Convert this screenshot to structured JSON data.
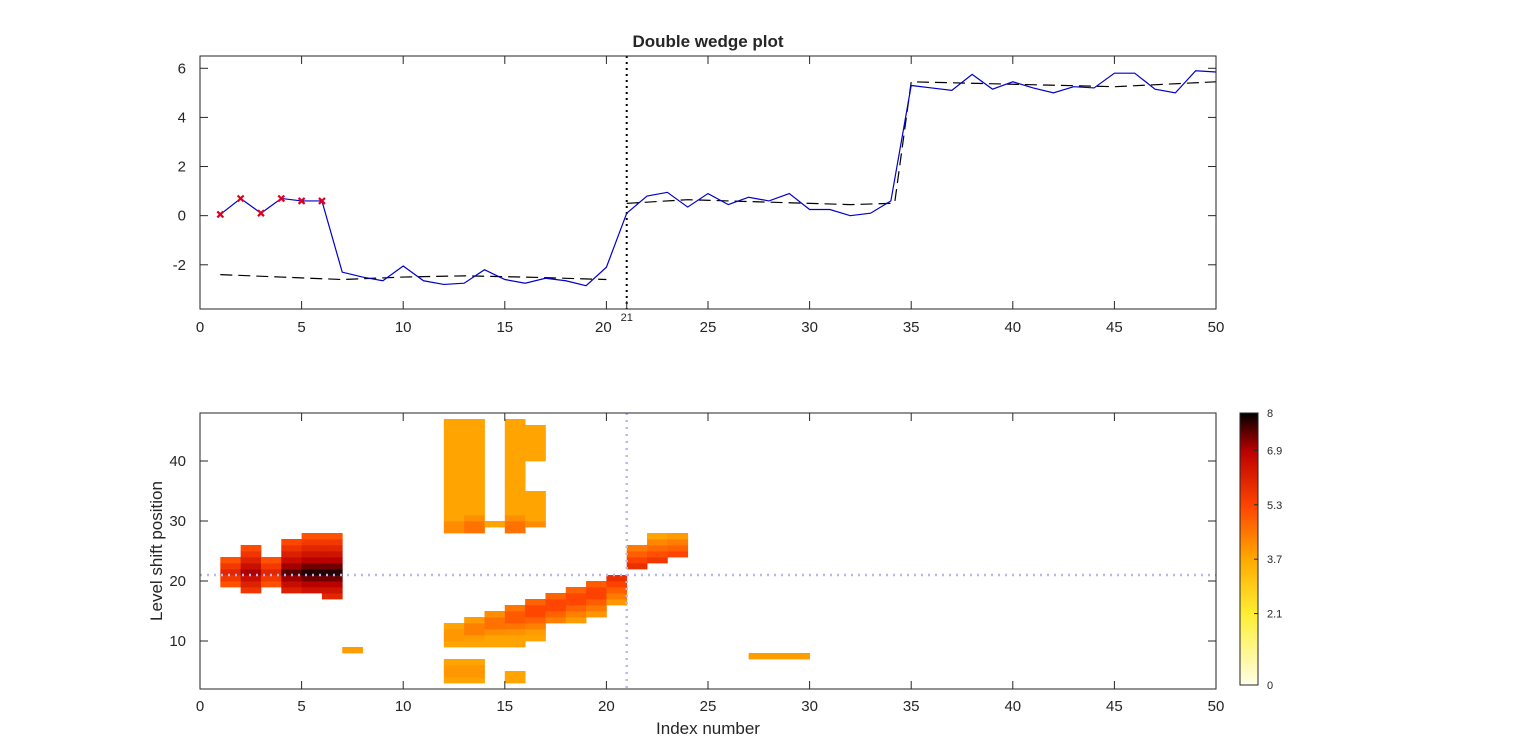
{
  "chart_data": [
    {
      "type": "line",
      "title": "Double wedge plot",
      "xlabel": "",
      "ylabel": "",
      "xlim": [
        0,
        50
      ],
      "ylim": [
        -3.8,
        6.5
      ],
      "xticks": [
        "0",
        "5",
        "10",
        "15",
        "20",
        "25",
        "30",
        "35",
        "40",
        "45",
        "50"
      ],
      "xticks_values": [
        0,
        5,
        10,
        15,
        20,
        25,
        30,
        35,
        40,
        45,
        50
      ],
      "extra_tick": {
        "label": "21",
        "x": 21
      },
      "yticks": [
        "-2",
        "0",
        "2",
        "4",
        "6"
      ],
      "yticks_values": [
        -2,
        0,
        2,
        4,
        6
      ],
      "grid": false,
      "vline": {
        "x": 21,
        "style": "dotted",
        "color": "#000000"
      },
      "series": [
        {
          "kind": "data",
          "color": "#0000cc",
          "x": [
            1,
            2,
            3,
            4,
            5,
            6,
            7,
            8,
            9,
            10,
            11,
            12,
            13,
            14,
            15,
            16,
            17,
            18,
            19,
            20,
            21,
            22,
            23,
            24,
            25,
            26,
            27,
            28,
            29,
            30,
            31,
            32,
            33,
            34,
            35,
            36,
            37,
            38,
            39,
            40,
            41,
            42,
            43,
            44,
            45,
            46,
            47,
            48,
            49,
            50
          ],
          "y": [
            0.05,
            0.7,
            0.1,
            0.7,
            0.6,
            0.6,
            -2.3,
            -2.5,
            -2.65,
            -2.05,
            -2.65,
            -2.8,
            -2.75,
            -2.2,
            -2.6,
            -2.75,
            -2.55,
            -2.65,
            -2.85,
            -2.1,
            0.1,
            0.8,
            0.95,
            0.35,
            0.9,
            0.45,
            0.75,
            0.6,
            0.9,
            0.25,
            0.25,
            0.0,
            0.1,
            0.6,
            5.3,
            5.2,
            5.1,
            5.75,
            5.15,
            5.45,
            5.2,
            5.0,
            5.25,
            5.2,
            5.8,
            5.8,
            5.15,
            5.0,
            5.9,
            5.85
          ]
        },
        {
          "kind": "fit",
          "color": "#000000",
          "style": "dashed",
          "segments": [
            {
              "x": [
                1,
                4,
                7,
                10,
                13,
                16,
                20
              ],
              "y": [
                -2.4,
                -2.5,
                -2.6,
                -2.5,
                -2.45,
                -2.5,
                -2.6
              ]
            },
            {
              "x": [
                21,
                24,
                28,
                32,
                34
              ],
              "y": [
                0.5,
                0.65,
                0.55,
                0.45,
                0.5
              ]
            },
            {
              "x": [
                34.2,
                35,
                40,
                45,
                50
              ],
              "y": [
                0.6,
                5.45,
                5.35,
                5.25,
                5.45
              ]
            }
          ]
        }
      ],
      "markers": {
        "color": "#dd0022",
        "x": [
          1,
          2,
          3,
          4,
          5,
          6
        ],
        "y": [
          0.05,
          0.7,
          0.1,
          0.7,
          0.6,
          0.6
        ]
      }
    },
    {
      "type": "heatmap",
      "title": "",
      "xlabel": "Index number",
      "ylabel": "Level shift position",
      "xlim": [
        0,
        50
      ],
      "ylim": [
        2,
        48
      ],
      "xticks": [
        "0",
        "5",
        "10",
        "15",
        "20",
        "25",
        "30",
        "35",
        "40",
        "45",
        "50"
      ],
      "xticks_values": [
        0,
        5,
        10,
        15,
        20,
        25,
        30,
        35,
        40,
        45,
        50
      ],
      "yticks": [
        "10",
        "20",
        "30",
        "40"
      ],
      "yticks_values": [
        10,
        20,
        30,
        40
      ],
      "crosshair": {
        "x": 21,
        "y": 21,
        "color": "#b8b8f0",
        "style": "dotted"
      },
      "colorbar": {
        "min": 0,
        "max": 8,
        "ticks": [
          "0",
          "2.1",
          "3.7",
          "5.3",
          "6.9",
          "8"
        ],
        "ticks_values": [
          0,
          2.1,
          3.7,
          5.3,
          6.9,
          8
        ]
      },
      "cells": [
        {
          "x": [
            1,
            2
          ],
          "y": [
            19,
            24
          ],
          "peak": 21.5,
          "v": 6.0
        },
        {
          "x": [
            2,
            3
          ],
          "y": [
            18,
            26
          ],
          "peak": 21.5,
          "v": 7.0
        },
        {
          "x": [
            3,
            4
          ],
          "y": [
            19,
            24
          ],
          "peak": 21.5,
          "v": 6.0
        },
        {
          "x": [
            4,
            5
          ],
          "y": [
            18,
            27
          ],
          "peak": 21.5,
          "v": 7.5
        },
        {
          "x": [
            5,
            6
          ],
          "y": [
            18,
            28
          ],
          "peak": 21.5,
          "v": 7.8
        },
        {
          "x": [
            6,
            7
          ],
          "y": [
            17,
            28
          ],
          "peak": 21.5,
          "v": 7.8
        },
        {
          "x": [
            7,
            8
          ],
          "y": [
            8,
            9
          ],
          "peak": 8.5,
          "v": 3.9
        },
        {
          "x": [
            12,
            13
          ],
          "y": [
            28,
            47
          ],
          "peak": 29,
          "v": 4.4
        },
        {
          "x": [
            13,
            14
          ],
          "y": [
            28,
            47
          ],
          "peak": 29,
          "v": 4.8
        },
        {
          "x": [
            14,
            15
          ],
          "y": [
            29,
            30
          ],
          "peak": 29.5,
          "v": 3.8
        },
        {
          "x": [
            15,
            16
          ],
          "y": [
            28,
            47
          ],
          "peak": 29,
          "v": 4.8
        },
        {
          "x": [
            16,
            17
          ],
          "y": [
            40,
            46
          ],
          "peak": 40,
          "v": 4.0
        },
        {
          "x": [
            16,
            17
          ],
          "y": [
            29,
            35
          ],
          "peak": 29,
          "v": 4.4
        },
        {
          "x": [
            12,
            13
          ],
          "y": [
            9,
            13
          ],
          "peak": 11,
          "v": 4.2
        },
        {
          "x": [
            13,
            14
          ],
          "y": [
            9,
            14
          ],
          "peak": 12,
          "v": 4.6
        },
        {
          "x": [
            14,
            15
          ],
          "y": [
            9,
            15
          ],
          "peak": 13,
          "v": 4.8
        },
        {
          "x": [
            15,
            16
          ],
          "y": [
            9,
            16
          ],
          "peak": 14,
          "v": 5.2
        },
        {
          "x": [
            16,
            17
          ],
          "y": [
            10,
            17
          ],
          "peak": 15,
          "v": 5.5
        },
        {
          "x": [
            17,
            18
          ],
          "y": [
            13,
            18
          ],
          "peak": 16,
          "v": 5.5
        },
        {
          "x": [
            18,
            19
          ],
          "y": [
            13,
            19
          ],
          "peak": 17,
          "v": 5.5
        },
        {
          "x": [
            19,
            20
          ],
          "y": [
            14,
            20
          ],
          "peak": 18,
          "v": 5.6
        },
        {
          "x": [
            20,
            21
          ],
          "y": [
            16,
            21
          ],
          "peak": 20.5,
          "v": 5.8
        },
        {
          "x": [
            12,
            14
          ],
          "y": [
            3,
            7
          ],
          "peak": 5,
          "v": 4.2
        },
        {
          "x": [
            15,
            16
          ],
          "y": [
            3,
            5
          ],
          "peak": 4,
          "v": 4.0
        },
        {
          "x": [
            21,
            22
          ],
          "y": [
            22,
            26
          ],
          "peak": 22.5,
          "v": 5.8
        },
        {
          "x": [
            22,
            23
          ],
          "y": [
            23,
            28
          ],
          "peak": 23.5,
          "v": 5.6
        },
        {
          "x": [
            23,
            24
          ],
          "y": [
            24,
            28
          ],
          "peak": 24.5,
          "v": 5.3
        },
        {
          "x": [
            27,
            30
          ],
          "y": [
            7,
            8
          ],
          "peak": 7.5,
          "v": 3.9
        }
      ]
    }
  ]
}
